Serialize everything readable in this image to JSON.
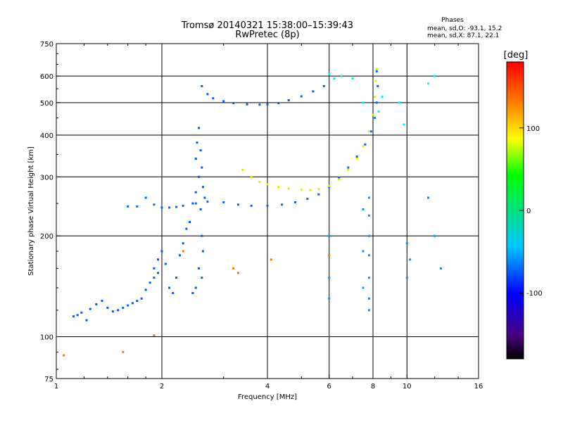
{
  "header": {
    "title_line1": "Tromsø 20140321 15:38:00–15:39:43",
    "title_line2": "RwPretec (8p)"
  },
  "phases": {
    "label": "Phases",
    "o_line": "mean, sd,O: -93.1, 15.2",
    "x_line": "mean, sd,X:  87.1, 22.1"
  },
  "colorbar": {
    "unit": "[deg]",
    "ticks": [
      {
        "value": 100,
        "label": "100"
      },
      {
        "value": 0,
        "label": "0"
      },
      {
        "value": -100,
        "label": "-100"
      }
    ],
    "range": [
      -180,
      180
    ]
  },
  "chart_data": {
    "type": "scatter",
    "title": "Tromsø 20140321 15:38:00–15:39:43",
    "subtitle": "RwPretec (8p)",
    "xlabel": "Frequency [MHz]",
    "ylabel": "Stationary phase Virtual Height [km]",
    "x_scale": "log",
    "y_scale": "log",
    "xlim": [
      1,
      16
    ],
    "ylim": [
      75,
      750
    ],
    "x_ticks": [
      1,
      2,
      4,
      6,
      8,
      10,
      16
    ],
    "y_ticks": [
      75,
      100,
      200,
      300,
      400,
      500,
      600,
      750
    ],
    "x_gridlines": [
      2,
      4,
      6,
      8,
      10
    ],
    "y_gridlines": [
      100,
      200,
      300,
      400,
      500,
      600
    ],
    "grid": true,
    "color_encoding": "phase [deg]",
    "series": [
      {
        "points": [
          [
            1.12,
            115
          ],
          [
            1.15,
            116
          ],
          [
            1.18,
            118
          ],
          [
            1.22,
            112
          ],
          [
            1.25,
            121
          ],
          [
            1.3,
            125
          ],
          [
            1.35,
            128
          ],
          [
            1.4,
            122
          ],
          [
            1.45,
            119
          ],
          [
            1.5,
            120
          ],
          [
            1.55,
            122
          ],
          [
            1.6,
            124
          ],
          [
            1.65,
            126
          ],
          [
            1.7,
            128
          ],
          [
            1.75,
            130
          ],
          [
            1.8,
            138
          ],
          [
            1.85,
            145
          ],
          [
            1.9,
            160
          ],
          [
            1.95,
            170
          ],
          [
            2.0,
            180
          ],
          [
            1.9,
            150
          ],
          [
            1.95,
            155
          ],
          [
            2.05,
            165
          ],
          [
            2.1,
            140
          ],
          [
            2.15,
            135
          ],
          [
            2.2,
            150
          ],
          [
            2.25,
            175
          ],
          [
            2.3,
            190
          ],
          [
            2.35,
            210
          ],
          [
            2.4,
            220
          ],
          [
            2.45,
            250
          ],
          [
            2.5,
            270
          ],
          [
            2.55,
            300
          ],
          [
            2.5,
            340
          ],
          [
            2.52,
            380
          ],
          [
            2.55,
            420
          ],
          [
            2.58,
            360
          ],
          [
            2.6,
            320
          ],
          [
            2.62,
            280
          ],
          [
            2.65,
            260
          ],
          [
            2.58,
            240
          ],
          [
            2.6,
            200
          ],
          [
            2.62,
            180
          ],
          [
            2.55,
            160
          ],
          [
            2.6,
            150
          ],
          [
            2.5,
            140
          ],
          [
            2.45,
            135
          ]
        ],
        "phase": -110
      },
      {
        "points": [
          [
            1.6,
            245
          ],
          [
            1.7,
            245
          ],
          [
            1.8,
            260
          ],
          [
            1.9,
            248
          ],
          [
            2.0,
            243
          ],
          [
            2.1,
            243
          ],
          [
            2.2,
            244
          ],
          [
            2.3,
            246
          ],
          [
            2.5,
            250
          ],
          [
            2.7,
            253
          ],
          [
            3.0,
            252
          ],
          [
            3.3,
            248
          ],
          [
            3.6,
            246
          ],
          [
            4.0,
            246
          ],
          [
            4.4,
            248
          ],
          [
            4.8,
            252
          ],
          [
            5.2,
            258
          ],
          [
            5.6,
            266
          ],
          [
            6.0,
            280
          ],
          [
            6.4,
            298
          ],
          [
            6.8,
            320
          ],
          [
            7.2,
            345
          ],
          [
            7.6,
            375
          ],
          [
            7.9,
            410
          ],
          [
            8.1,
            450
          ],
          [
            8.2,
            500
          ],
          [
            8.25,
            560
          ],
          [
            8.2,
            620
          ]
        ],
        "phase": -105
      },
      {
        "points": [
          [
            2.6,
            560
          ],
          [
            2.7,
            530
          ],
          [
            2.8,
            515
          ],
          [
            3.0,
            505
          ],
          [
            3.2,
            498
          ],
          [
            3.5,
            494
          ],
          [
            3.8,
            493
          ],
          [
            4.0,
            494
          ],
          [
            4.3,
            498
          ],
          [
            4.6,
            508
          ],
          [
            5.0,
            522
          ],
          [
            5.4,
            540
          ],
          [
            5.8,
            560
          ]
        ],
        "phase": -110
      },
      {
        "points": [
          [
            3.4,
            315
          ],
          [
            3.6,
            300
          ],
          [
            3.8,
            290
          ],
          [
            4.0,
            285
          ],
          [
            4.3,
            280
          ],
          [
            4.6,
            277
          ],
          [
            5.0,
            275
          ],
          [
            5.3,
            274
          ],
          [
            5.6,
            276
          ],
          [
            6.0,
            282
          ],
          [
            6.4,
            295
          ],
          [
            6.8,
            315
          ],
          [
            7.2,
            340
          ],
          [
            7.5,
            370
          ],
          [
            7.8,
            410
          ],
          [
            8.0,
            460
          ],
          [
            8.1,
            520
          ],
          [
            8.15,
            580
          ],
          [
            8.2,
            630
          ]
        ],
        "phase": 90
      },
      {
        "points": [
          [
            6.0,
            610
          ],
          [
            6.2,
            590
          ],
          [
            6.5,
            600
          ],
          [
            7.0,
            590
          ],
          [
            7.5,
            500
          ],
          [
            8.3,
            470
          ],
          [
            8.5,
            520
          ],
          [
            9.5,
            500
          ],
          [
            9.8,
            430
          ],
          [
            11.5,
            570
          ],
          [
            12.0,
            600
          ]
        ],
        "phase": -60
      },
      {
        "points": [
          [
            7.8,
            260
          ],
          [
            7.8,
            230
          ],
          [
            7.8,
            200
          ],
          [
            7.8,
            175
          ],
          [
            7.8,
            150
          ],
          [
            7.8,
            130
          ],
          [
            7.8,
            120
          ],
          [
            7.5,
            240
          ],
          [
            7.5,
            180
          ],
          [
            7.5,
            140
          ],
          [
            6.0,
            200
          ],
          [
            6.0,
            150
          ],
          [
            6.0,
            130
          ],
          [
            10.0,
            190
          ],
          [
            10.0,
            150
          ],
          [
            10.2,
            170
          ],
          [
            12.0,
            200
          ],
          [
            12.5,
            160
          ],
          [
            11.5,
            260
          ]
        ],
        "phase": -90
      },
      {
        "points": [
          [
            1.05,
            88
          ],
          [
            1.55,
            90
          ],
          [
            1.9,
            101
          ],
          [
            3.2,
            160
          ],
          [
            3.3,
            155
          ],
          [
            2.3,
            180
          ],
          [
            4.1,
            170
          ],
          [
            6.0,
            175
          ]
        ],
        "phase": 140
      }
    ]
  }
}
